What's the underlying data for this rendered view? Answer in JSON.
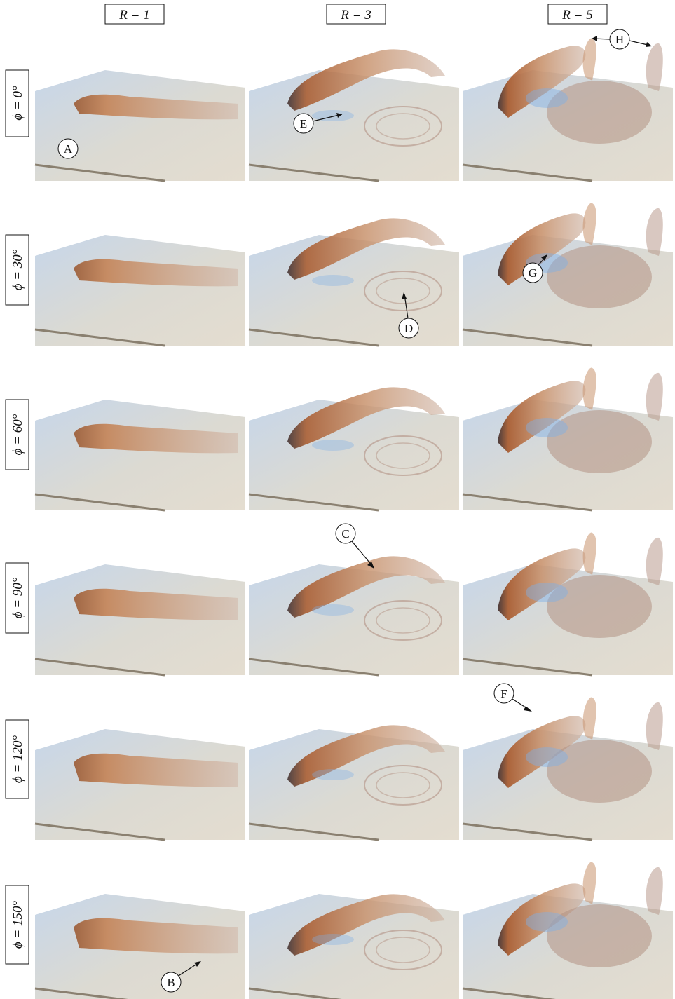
{
  "column_headers": [
    "R = 1",
    "R = 3",
    "R = 5"
  ],
  "row_labels": [
    "ϕ = 0°",
    "ϕ = 30°",
    "ϕ = 60°",
    "ϕ = 90°",
    "ϕ = 120°",
    "ϕ = 150°"
  ],
  "markers": {
    "A": "A",
    "B": "B",
    "C": "C",
    "D": "D",
    "E": "E",
    "F": "F",
    "G": "G",
    "H": "H"
  },
  "colors": {
    "plate": "#ddd6cb",
    "plate_edge": "#8a8070",
    "jet_head": "#a85a2a",
    "jet_body": "#c9936e",
    "vortex_blue": "#7fb0e6",
    "wake": "#b39184"
  }
}
